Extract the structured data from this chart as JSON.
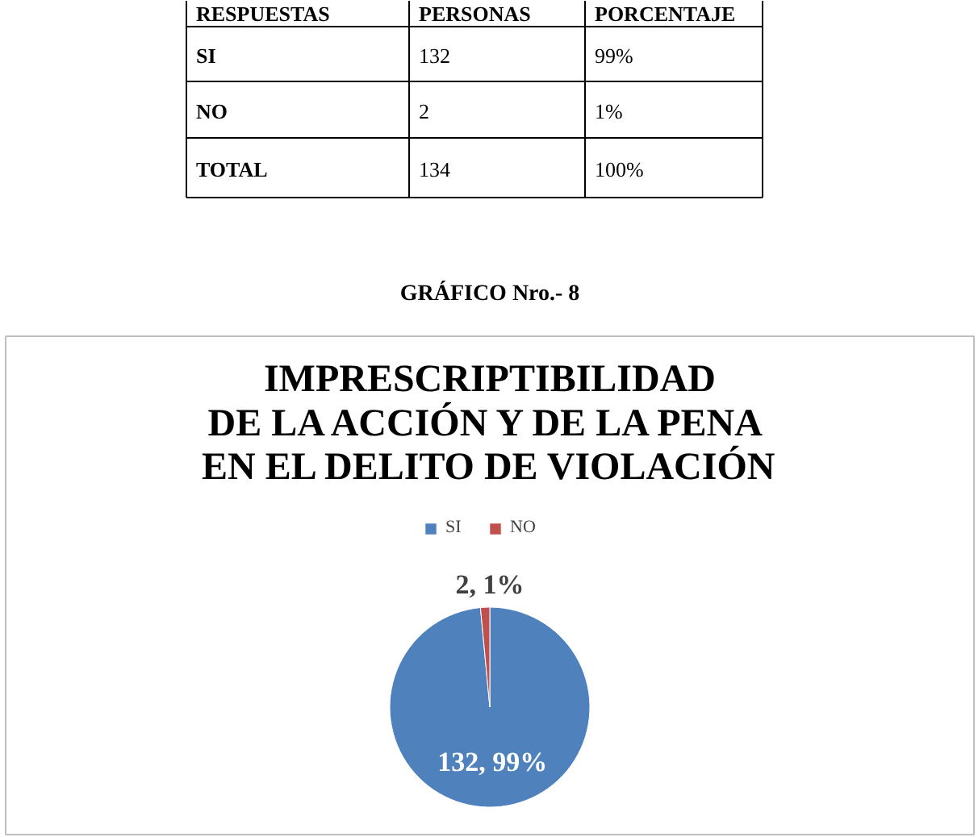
{
  "chart_data": {
    "type": "pie",
    "title": "IMPRESCRIPTIBILIDAD\nDE LA ACCIÓN Y DE LA PENA\nEN EL DELITO DE VIOLACIÓN",
    "categories": [
      "SI",
      "NO"
    ],
    "values": [
      132,
      2
    ],
    "colors": [
      "#4f81bd",
      "#c0504d"
    ],
    "value_labels": [
      "132, 99%",
      "2, 1%"
    ],
    "legend": "top",
    "annotations": [
      "RESPUESTAS",
      "PERSONAS",
      "PORCENTAJE",
      "SI",
      "132",
      "99%",
      "NO",
      "2",
      "1%",
      "TOTAL",
      "134",
      "100%",
      "GRÁFICO Nro.- 8"
    ]
  }
}
